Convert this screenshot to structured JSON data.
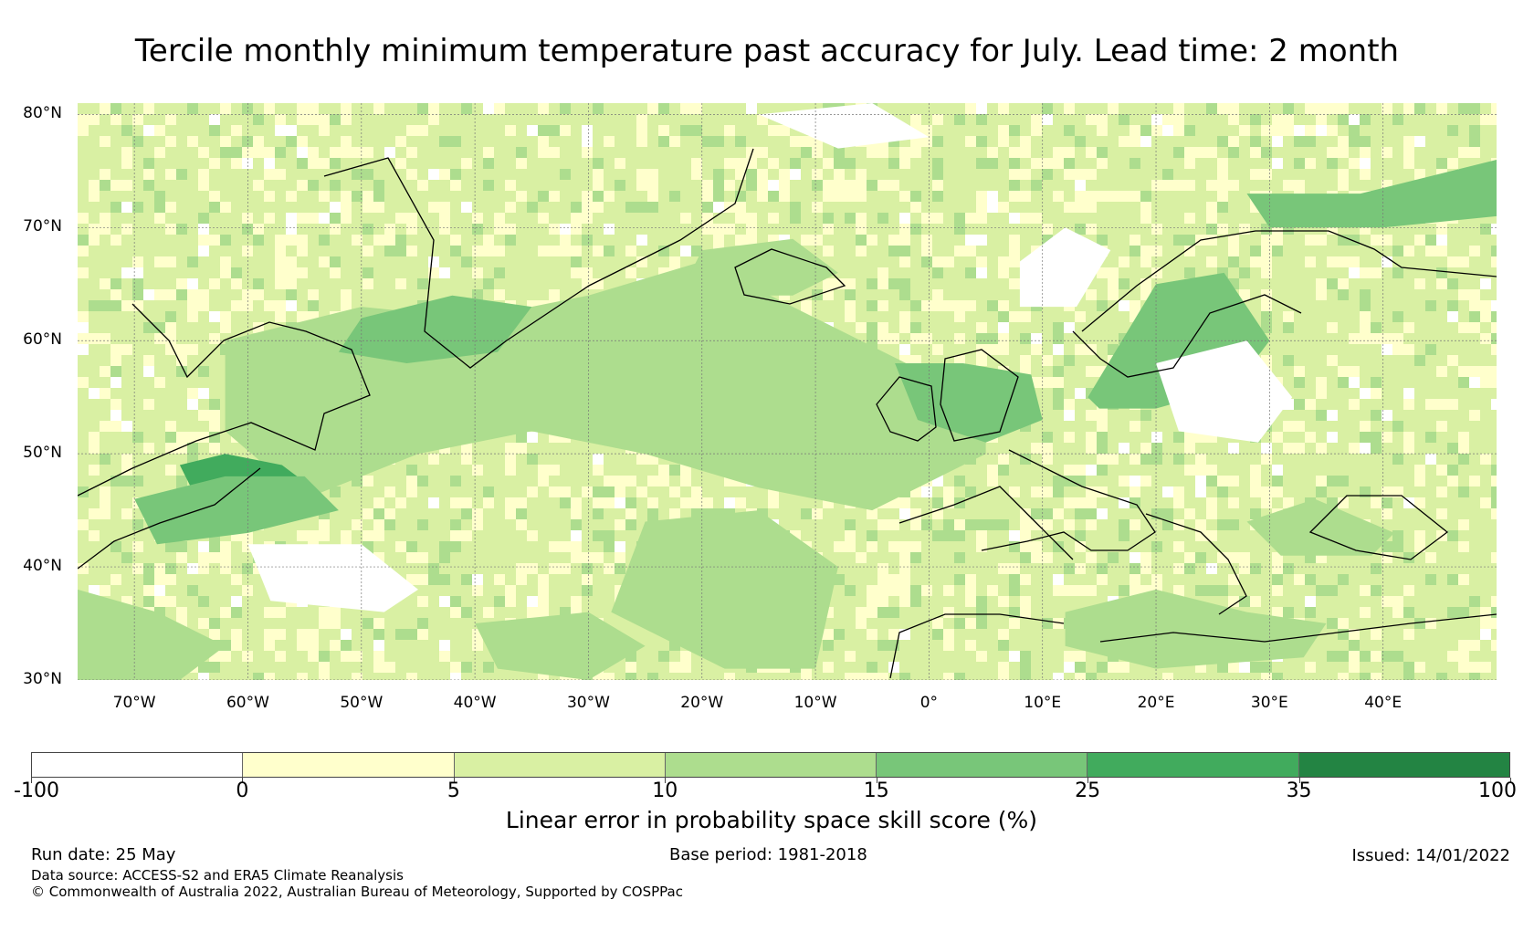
{
  "title": "Tercile monthly minimum temperature past accuracy for July. Lead time: 2 month",
  "map": {
    "projection": "plate-carree",
    "extent": {
      "lon_min": -75,
      "lon_max": 50,
      "lat_min": 30,
      "lat_max": 81
    },
    "latitude_labels": [
      {
        "lat": 80,
        "text": "80°N"
      },
      {
        "lat": 70,
        "text": "70°N"
      },
      {
        "lat": 60,
        "text": "60°N"
      },
      {
        "lat": 50,
        "text": "50°N"
      },
      {
        "lat": 40,
        "text": "40°N"
      },
      {
        "lat": 30,
        "text": "30°N"
      }
    ],
    "longitude_labels": [
      {
        "lon": -70,
        "text": "70°W"
      },
      {
        "lon": -60,
        "text": "60°W"
      },
      {
        "lon": -50,
        "text": "50°W"
      },
      {
        "lon": -40,
        "text": "40°W"
      },
      {
        "lon": -30,
        "text": "30°W"
      },
      {
        "lon": -20,
        "text": "20°W"
      },
      {
        "lon": -10,
        "text": "10°W"
      },
      {
        "lon": 0,
        "text": "0°"
      },
      {
        "lon": 10,
        "text": "10°E"
      },
      {
        "lon": 20,
        "text": "20°E"
      },
      {
        "lon": 30,
        "text": "30°E"
      },
      {
        "lon": 40,
        "text": "40°E"
      }
    ],
    "gridlines": true,
    "skill_regions": [
      {
        "name": "north-atlantic-band",
        "level": 3,
        "lons": [
          -62,
          -50,
          -40,
          -30,
          -20,
          -10,
          0,
          5,
          5,
          -5,
          -15,
          -25,
          -35,
          -45,
          -55,
          -62
        ],
        "lats": [
          60,
          63,
          62,
          64,
          67,
          62,
          57,
          55,
          50,
          45,
          47,
          50,
          52,
          50,
          46,
          52
        ]
      },
      {
        "name": "gulf-of-st-lawrence",
        "level": 5,
        "lons": [
          -66,
          -62,
          -57,
          -53,
          -58,
          -64
        ],
        "lats": [
          49,
          50,
          49,
          46,
          44,
          45
        ]
      },
      {
        "name": "nova-scotia-coast",
        "level": 4,
        "lons": [
          -70,
          -62,
          -55,
          -52,
          -60,
          -68
        ],
        "lats": [
          46,
          48,
          48,
          45,
          43,
          42
        ]
      },
      {
        "name": "irminger-sea",
        "level": 4,
        "lons": [
          -50,
          -42,
          -35,
          -38,
          -46,
          -52
        ],
        "lats": [
          62,
          64,
          63,
          59,
          58,
          59
        ]
      },
      {
        "name": "iceland-sea",
        "level": 3,
        "lons": [
          -20,
          -12,
          -8,
          -12,
          -22
        ],
        "lats": [
          68,
          69,
          66,
          64,
          64
        ]
      },
      {
        "name": "north-sea",
        "level": 4,
        "lons": [
          -3,
          3,
          9,
          10,
          5,
          -1
        ],
        "lats": [
          58,
          58,
          57,
          53,
          51,
          53
        ]
      },
      {
        "name": "baltic",
        "level": 4,
        "lons": [
          14,
          20,
          26,
          30,
          27,
          20,
          15
        ],
        "lats": [
          55,
          65,
          66,
          60,
          56,
          54,
          54
        ]
      },
      {
        "name": "barents-sea",
        "level": 4,
        "lons": [
          28,
          38,
          50,
          50,
          40,
          30
        ],
        "lats": [
          73,
          73,
          76,
          71,
          70,
          70
        ]
      },
      {
        "name": "subtropical-atlantic",
        "level": 3,
        "lons": [
          -25,
          -15,
          -8,
          -10,
          -18,
          -28
        ],
        "lats": [
          44,
          45,
          40,
          31,
          31,
          36
        ]
      },
      {
        "name": "mediterranean-east",
        "level": 3,
        "lons": [
          12,
          20,
          28,
          35,
          33,
          20,
          12
        ],
        "lats": [
          36,
          38,
          36,
          35,
          32,
          31,
          33
        ]
      },
      {
        "name": "black-sea",
        "level": 3,
        "lons": [
          28,
          34,
          41,
          39,
          31
        ],
        "lats": [
          44,
          46,
          43,
          41,
          41
        ]
      },
      {
        "name": "azores-low",
        "level": 3,
        "lons": [
          -40,
          -30,
          -25,
          -30,
          -38
        ],
        "lats": [
          35,
          36,
          33,
          30,
          31
        ]
      },
      {
        "name": "east-us-coast",
        "level": 3,
        "lons": [
          -75,
          -68,
          -62,
          -66,
          -75
        ],
        "lats": [
          38,
          36,
          33,
          30,
          30
        ]
      },
      {
        "name": "subtropical-minus",
        "level": 0,
        "lons": [
          -60,
          -50,
          -45,
          -48,
          -58
        ],
        "lats": [
          42,
          42,
          38,
          36,
          37
        ]
      },
      {
        "name": "scandinavia-minus",
        "level": 0,
        "lons": [
          8,
          12,
          16,
          13,
          8
        ],
        "lats": [
          67,
          70,
          68,
          63,
          63
        ]
      },
      {
        "name": "russia-minus",
        "level": 0,
        "lons": [
          20,
          28,
          32,
          29,
          22
        ],
        "lats": [
          58,
          60,
          55,
          51,
          52
        ]
      },
      {
        "name": "arctic-minus",
        "level": 0,
        "lons": [
          -15,
          -5,
          0,
          -8
        ],
        "lats": [
          80,
          81,
          78,
          77
        ]
      }
    ]
  },
  "colorbar": {
    "levels": [
      "-100",
      "0",
      "5",
      "10",
      "15",
      "25",
      "35",
      "100"
    ],
    "colors": [
      "#ffffff",
      "#ffffcc",
      "#d9f0a3",
      "#addd8e",
      "#78c679",
      "#41ab5d",
      "#238443"
    ],
    "label": "Linear error in probability space skill score (%)"
  },
  "footer": {
    "run_date": "Run date: 25 May",
    "base_period": "Base period: 1981-2018",
    "issued": "Issued: 14/01/2022",
    "data_source": "Data source: ACCESS-S2 and ERA5 Climate Reanalysis",
    "copyright": "© Commonwealth of Australia 2022, Australian Bureau of Meteorology, Supported by COSPPac"
  }
}
